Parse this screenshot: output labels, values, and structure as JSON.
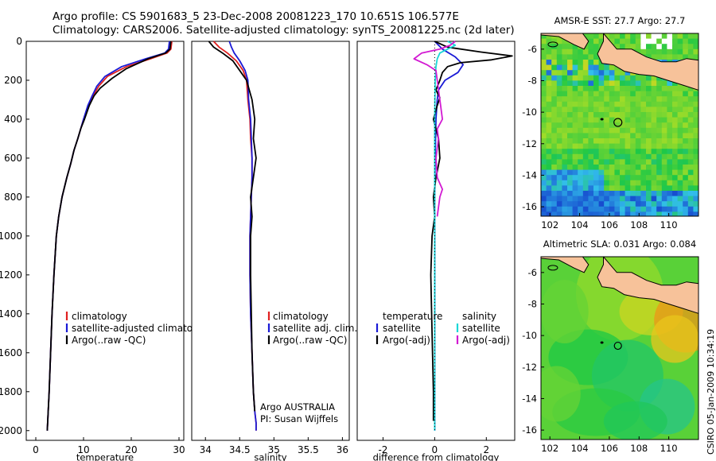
{
  "header": {
    "line1": "Argo profile: CS 5901683_5 23-Dec-2008 20081223_170 10.651S 106.577E",
    "line2": "Climatology: CARS2006. Satellite-adjusted climatology: synTS_20081225.nc (2d later)"
  },
  "side_label": "CSIRO 05-Jan-2009 10:34:19",
  "colors": {
    "red": "#e02020",
    "blue": "#1a1ad6",
    "black": "#000000",
    "cyan": "#1ad7d7",
    "magenta": "#d21ad2"
  },
  "chart_data": [
    {
      "type": "line",
      "id": "temperature",
      "xlabel": "temperature",
      "xlim": [
        -2,
        31
      ],
      "ylim": [
        0,
        2050
      ],
      "xticks": [
        0,
        10,
        20,
        30
      ],
      "xtick_labels": [
        "0",
        "10",
        "20",
        "30"
      ],
      "yticks": [
        0,
        200,
        400,
        600,
        800,
        1000,
        1200,
        1400,
        1600,
        1800,
        2000
      ],
      "ytick_labels": [
        "0",
        "200",
        "400",
        "600",
        "800",
        "1000",
        "1200",
        "1400",
        "1600",
        "1800",
        "2000"
      ],
      "series": [
        {
          "name": "climatology",
          "color": "red",
          "x": [
            28.5,
            28.3,
            27.5,
            24,
            19,
            15,
            13.2,
            12,
            11,
            10,
            9.4,
            8.8,
            8,
            7.3,
            6.5,
            5.5,
            4.8,
            4.3,
            3.8,
            3.4,
            3.1,
            2.8,
            2.6,
            2.4
          ],
          "y": [
            0,
            40,
            60,
            90,
            130,
            180,
            230,
            280,
            330,
            400,
            450,
            500,
            560,
            630,
            700,
            800,
            900,
            1000,
            1200,
            1400,
            1600,
            1800,
            1900,
            2000
          ]
        },
        {
          "name": "satellite-adjusted climatology",
          "color": "blue",
          "x": [
            28,
            27.8,
            27,
            23,
            18,
            14.5,
            12.8,
            11.8,
            10.9,
            10,
            9.4,
            8.8,
            8,
            7.3,
            6.5,
            5.5,
            4.8,
            4.3,
            3.8,
            3.4,
            3.1,
            2.8,
            2.6,
            2.4
          ],
          "y": [
            0,
            40,
            60,
            90,
            130,
            180,
            230,
            280,
            330,
            400,
            450,
            500,
            560,
            630,
            700,
            800,
            900,
            1000,
            1200,
            1400,
            1600,
            1800,
            1900,
            2000
          ]
        },
        {
          "name": "Argo(..raw -QC)",
          "color": "black",
          "x": [
            28.3,
            28.1,
            27.2,
            23.5,
            19,
            16,
            13.5,
            12.2,
            11.2,
            10.2,
            9.4,
            8.8,
            8,
            7.3,
            6.5,
            5.5,
            4.8,
            4.3,
            3.8,
            3.4,
            3.1,
            2.8,
            2.6,
            2.4
          ],
          "y": [
            0,
            40,
            60,
            90,
            140,
            190,
            240,
            280,
            330,
            400,
            450,
            500,
            560,
            630,
            700,
            800,
            900,
            1000,
            1200,
            1400,
            1600,
            1800,
            1900,
            2000
          ]
        }
      ],
      "legend": [
        "climatology",
        "satellite-adjusted climatology",
        "Argo(..raw -QC)"
      ]
    },
    {
      "type": "line",
      "id": "salinity",
      "xlabel": "salinity",
      "xlim": [
        33.8,
        36.1
      ],
      "ylim": [
        0,
        2050
      ],
      "xticks": [
        34,
        34.5,
        35,
        35.5,
        36
      ],
      "xtick_labels": [
        "34",
        "34.5",
        "35",
        "35.5",
        "36"
      ],
      "series": [
        {
          "name": "climatology",
          "color": "red",
          "x": [
            34.12,
            34.2,
            34.32,
            34.45,
            34.55,
            34.6,
            34.62,
            34.65,
            34.66,
            34.68,
            34.68,
            34.67,
            34.66,
            34.65,
            34.65,
            34.66,
            34.68,
            34.7,
            34.72,
            34.74,
            34.74
          ],
          "y": [
            0,
            30,
            60,
            100,
            150,
            200,
            300,
            400,
            500,
            600,
            700,
            800,
            900,
            1000,
            1200,
            1400,
            1600,
            1800,
            1900,
            1960,
            2000
          ]
        },
        {
          "name": "satellite adj. clim.",
          "color": "blue",
          "x": [
            34.35,
            34.38,
            34.42,
            34.5,
            34.58,
            34.62,
            34.63,
            34.66,
            34.67,
            34.68,
            34.68,
            34.67,
            34.66,
            34.65,
            34.65,
            34.66,
            34.68,
            34.7,
            34.72,
            34.74,
            34.74
          ],
          "y": [
            0,
            30,
            60,
            100,
            150,
            200,
            300,
            400,
            500,
            600,
            700,
            800,
            900,
            1000,
            1200,
            1400,
            1600,
            1800,
            1900,
            1960,
            2000
          ]
        },
        {
          "name": "Argo(..raw -QC)",
          "color": "black",
          "x": [
            34.05,
            34.12,
            34.25,
            34.4,
            34.5,
            34.6,
            34.68,
            34.72,
            34.7,
            34.74,
            34.7,
            34.66,
            34.68,
            34.66,
            34.66,
            34.67,
            34.68,
            34.7,
            34.72
          ],
          "y": [
            0,
            30,
            60,
            100,
            150,
            200,
            300,
            400,
            500,
            600,
            700,
            800,
            900,
            1000,
            1200,
            1400,
            1600,
            1800,
            1900
          ]
        }
      ],
      "legend": [
        "climatology",
        "satellite adj. clim.",
        "Argo(..raw -QC)"
      ],
      "annotations": [
        "Argo AUSTRALIA",
        "PI: Susan Wijffels"
      ]
    },
    {
      "type": "line",
      "id": "difference",
      "xlabel": "difference from climatology",
      "xlim": [
        -3,
        3.1
      ],
      "ylim": [
        0,
        2050
      ],
      "xticks": [
        -2,
        0,
        2
      ],
      "xtick_labels": [
        "-2",
        "0",
        "2"
      ],
      "series": [
        {
          "name": "temperature satellite",
          "color": "blue",
          "x": [
            0,
            0.3,
            0.8,
            1.1,
            0.9,
            0.4,
            0.15,
            0.1,
            0.05,
            0.02,
            0,
            0,
            0
          ],
          "y": [
            0,
            40,
            80,
            120,
            160,
            200,
            250,
            300,
            400,
            600,
            800,
            1200,
            2000
          ]
        },
        {
          "name": "temperature Argo(-adj)",
          "color": "black",
          "x": [
            0,
            0.5,
            1.8,
            3.0,
            2.2,
            1.0,
            0.5,
            0.3,
            0.2,
            0.05,
            0.2,
            0.1,
            -0.05,
            0.15,
            0.2,
            0.05,
            -0.05,
            0,
            -0.1,
            -0.15,
            -0.1,
            -0.05,
            -0.05
          ],
          "y": [
            0,
            30,
            55,
            75,
            95,
            110,
            130,
            160,
            200,
            250,
            290,
            330,
            400,
            500,
            600,
            700,
            800,
            900,
            1000,
            1200,
            1500,
            1800,
            1950
          ]
        },
        {
          "name": "salinity satellite",
          "color": "cyan",
          "x": [
            0.5,
            0.8,
            0.5,
            0.2,
            0.1,
            0.05,
            0.02,
            0.01,
            0,
            0,
            0,
            0
          ],
          "y": [
            0,
            20,
            40,
            60,
            90,
            130,
            200,
            300,
            400,
            600,
            1000,
            2000
          ]
        },
        {
          "name": "salinity Argo(-adj)",
          "color": "magenta",
          "x": [
            0.8,
            0.6,
            0.2,
            -0.5,
            -0.8,
            -0.3,
            0.05,
            0.1,
            0.2,
            0.3,
            0.1,
            0.15,
            0.05,
            0.1,
            0.3,
            0.2,
            0.1
          ],
          "y": [
            0,
            20,
            40,
            60,
            90,
            120,
            150,
            200,
            300,
            400,
            450,
            500,
            600,
            700,
            760,
            800,
            900
          ]
        }
      ],
      "legend_left_title": "temperature",
      "legend_right_title": "salinity",
      "legend_left": [
        "satellite",
        "Argo(-adj)"
      ],
      "legend_right": [
        "satellite",
        "Argo(-adj)"
      ]
    },
    {
      "type": "heatmap",
      "id": "sst_map",
      "title": "AMSR-E SST: 27.7 Argo: 27.7",
      "xlim": [
        101.4,
        112
      ],
      "ylim": [
        -16.6,
        -5
      ],
      "xticks": [
        102,
        104,
        106,
        108,
        110
      ],
      "xtick_labels": [
        "102",
        "104",
        "106",
        "108",
        "110"
      ],
      "yticks": [
        -6,
        -8,
        -10,
        -12,
        -14,
        -16
      ],
      "ytick_labels": [
        "-6",
        "-8",
        "-10",
        "-12",
        "-14",
        "-16"
      ],
      "argo_position": {
        "lon": 106.577,
        "lat": -10.651
      }
    },
    {
      "type": "heatmap",
      "id": "sla_map",
      "title": "Altimetric SLA: 0.031 Argo: 0.084",
      "xlim": [
        101.4,
        112
      ],
      "ylim": [
        -16.6,
        -5
      ],
      "xticks": [
        102,
        104,
        106,
        108,
        110
      ],
      "xtick_labels": [
        "102",
        "104",
        "106",
        "108",
        "110"
      ],
      "yticks": [
        -6,
        -8,
        -10,
        -12,
        -14,
        -16
      ],
      "ytick_labels": [
        "-6",
        "-8",
        "-10",
        "-12",
        "-14",
        "-16"
      ],
      "argo_position": {
        "lon": 106.577,
        "lat": -10.651
      }
    }
  ]
}
